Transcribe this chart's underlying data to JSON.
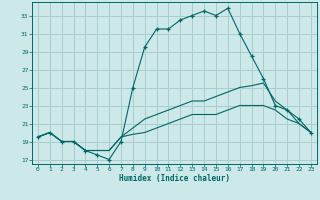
{
  "title": "",
  "xlabel": "Humidex (Indice chaleur)",
  "bg_color": "#cce8e8",
  "grid_color": "#aacccc",
  "line_color": "#006666",
  "spine_color": "#006666",
  "xlim": [
    -0.5,
    23.5
  ],
  "ylim": [
    16.5,
    34.5
  ],
  "xticks": [
    0,
    1,
    2,
    3,
    4,
    5,
    6,
    7,
    8,
    9,
    10,
    11,
    12,
    13,
    14,
    15,
    16,
    17,
    18,
    19,
    20,
    21,
    22,
    23
  ],
  "yticks": [
    17,
    19,
    21,
    23,
    25,
    27,
    29,
    31,
    33
  ],
  "lines": [
    {
      "x": [
        0,
        1,
        2,
        3,
        4,
        5,
        6,
        7,
        8,
        9,
        10,
        11,
        12,
        13,
        14,
        15,
        16,
        17,
        18,
        19,
        20,
        21,
        22,
        23
      ],
      "y": [
        19.5,
        20,
        19,
        19,
        18,
        17.5,
        17,
        19,
        25,
        29.5,
        31.5,
        31.5,
        32.5,
        33,
        33.5,
        33,
        33.8,
        31,
        28.5,
        26,
        23,
        22.5,
        21.5,
        20
      ],
      "marker": "+"
    },
    {
      "x": [
        0,
        1,
        2,
        3,
        4,
        5,
        6,
        7,
        8,
        9,
        10,
        11,
        12,
        13,
        14,
        15,
        16,
        17,
        18,
        19,
        20,
        21,
        22,
        23
      ],
      "y": [
        19.5,
        20,
        19,
        19,
        18,
        18,
        18,
        19.5,
        20.5,
        21.5,
        22,
        22.5,
        23,
        23.5,
        23.5,
        24,
        24.5,
        25,
        25.2,
        25.5,
        23.5,
        22.5,
        21,
        20
      ],
      "marker": null
    },
    {
      "x": [
        0,
        1,
        2,
        3,
        4,
        5,
        6,
        7,
        8,
        9,
        10,
        11,
        12,
        13,
        14,
        15,
        16,
        17,
        18,
        19,
        20,
        21,
        22,
        23
      ],
      "y": [
        19.5,
        20,
        19,
        19,
        18,
        18,
        18,
        19.5,
        19.8,
        20,
        20.5,
        21,
        21.5,
        22,
        22,
        22,
        22.5,
        23,
        23,
        23,
        22.5,
        21.5,
        21,
        20
      ],
      "marker": null
    }
  ]
}
